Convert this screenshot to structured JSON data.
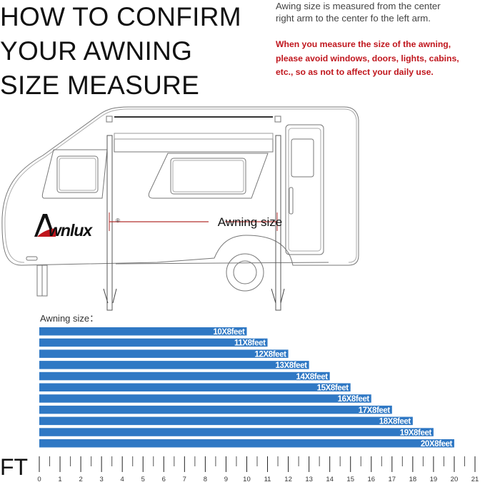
{
  "title": {
    "lines": [
      "HOW TO CONFIRM",
      "YOUR AWNING",
      "SIZE MEASURE"
    ]
  },
  "description": {
    "lines": [
      "Awing size is measured from the center",
      "right arm to the center fo the left arm."
    ]
  },
  "warning": {
    "lines": [
      "When you measure the size of the awning,",
      "please avoid windows, doors, lights, cabins,",
      "etc., so as not to affect your daily use."
    ]
  },
  "diagram": {
    "measure_label": "Awning size",
    "logo_text": "Awnlux",
    "logo_mark": "®",
    "measure_color": "#b5302f"
  },
  "chart_data": {
    "type": "bar",
    "orientation": "horizontal",
    "title": "Awning size：",
    "categories": [
      "10X8feet",
      "11X8feet",
      "12X8feet",
      "13X8feet",
      "14X8feet",
      "15X8feet",
      "16X8feet",
      "17X8feet",
      "18X8feet",
      "19X8feet",
      "20X8feet"
    ],
    "values": [
      10,
      11,
      12,
      13,
      14,
      15,
      16,
      17,
      18,
      19,
      20
    ],
    "xlabel": "FT",
    "xlim": [
      0,
      21
    ],
    "xticks": [
      0,
      1,
      2,
      3,
      4,
      5,
      6,
      7,
      8,
      9,
      10,
      11,
      12,
      13,
      14,
      15,
      16,
      17,
      18,
      19,
      20,
      21
    ],
    "bar_color": "#2f78c4",
    "grid": false
  }
}
